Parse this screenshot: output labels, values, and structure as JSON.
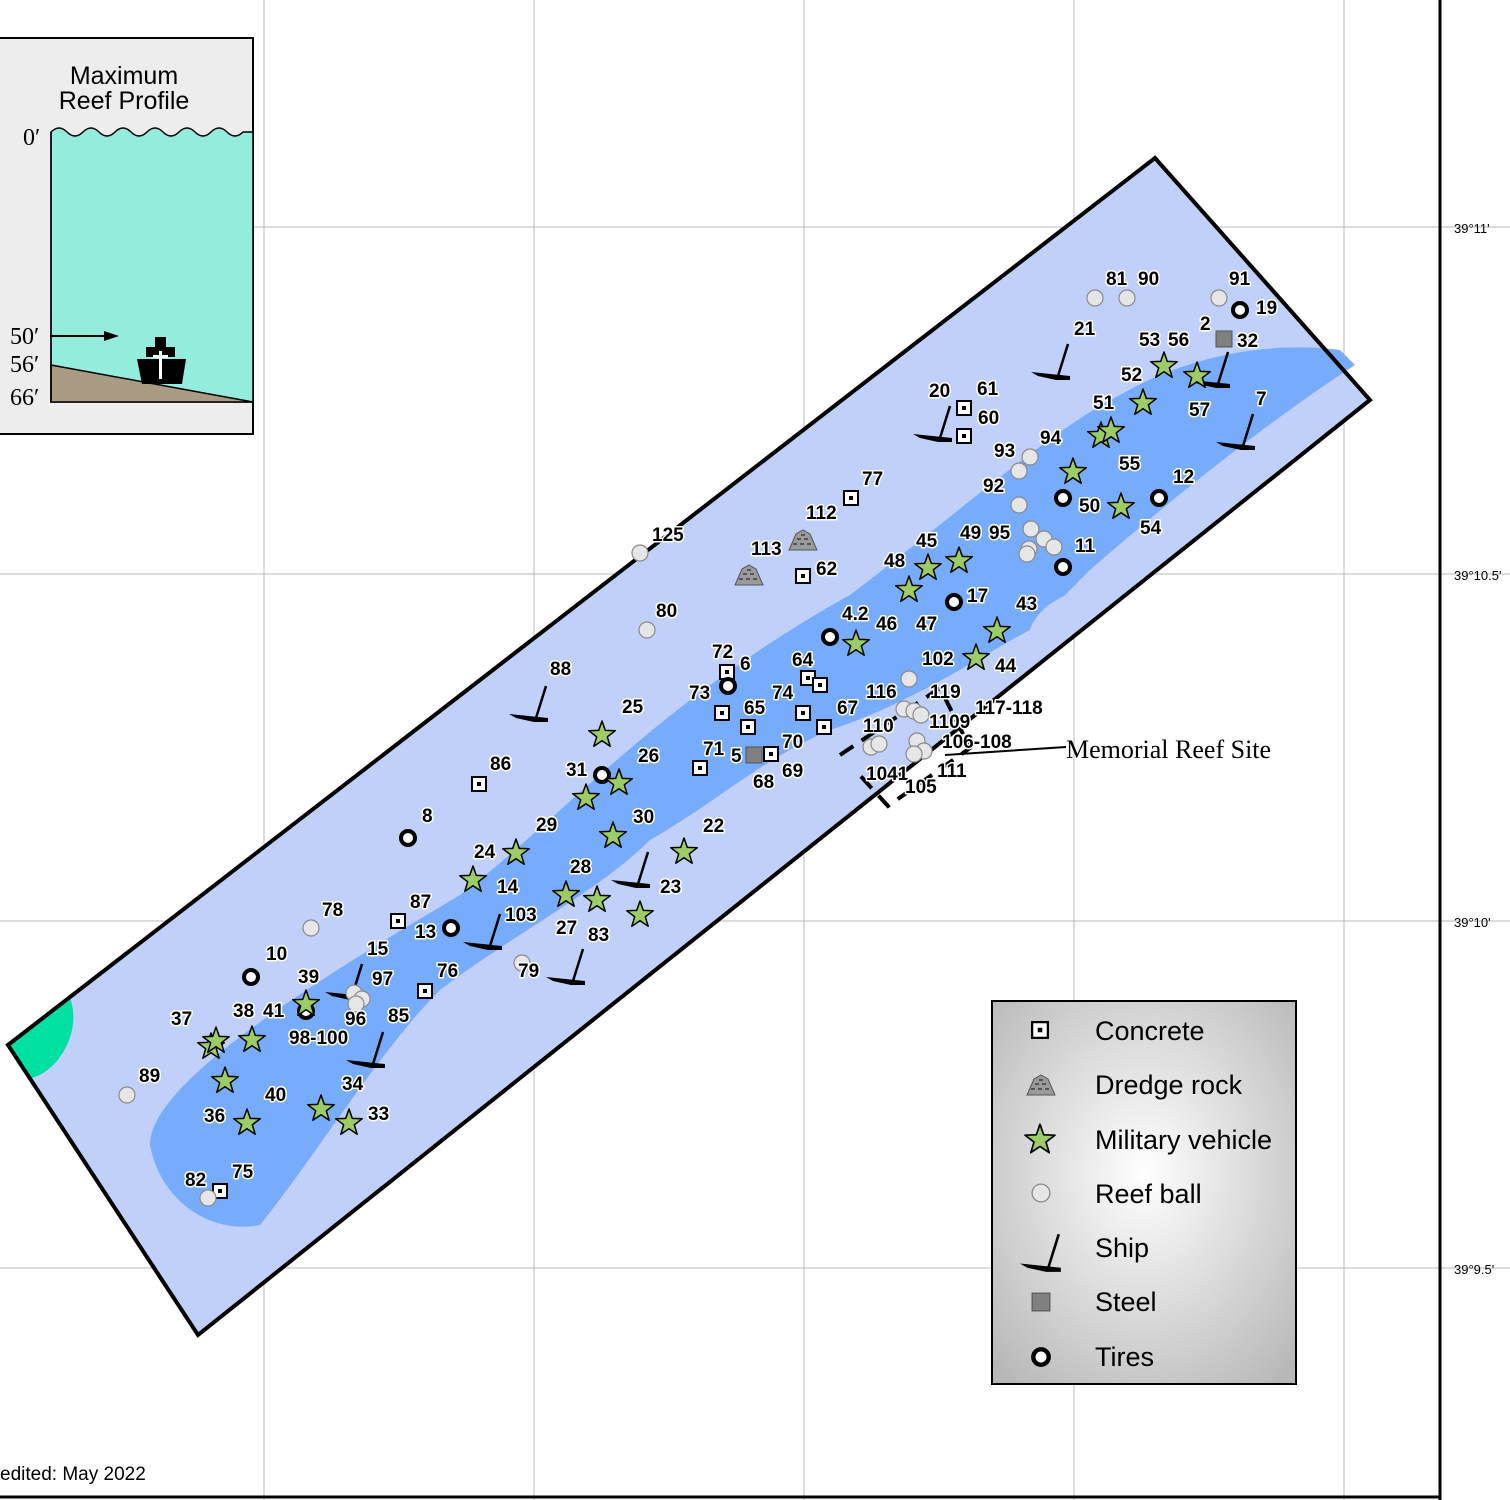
{
  "map": {
    "latitude_labels": [
      "39°11'",
      "39°10.5'",
      "39°10'",
      "39°9.5'"
    ],
    "memorial_label": "Memorial Reef Site",
    "edited_label": "edited: May 2022",
    "colors": {
      "outer_zone": "#c0d0fb",
      "deep_zone": "#76acfb",
      "corner_patch": "#00e0a0",
      "military_vehicle": "#9ccc65",
      "steel": "#808080"
    }
  },
  "inset": {
    "title_line1": "Maximum",
    "title_line2": "Reef Profile",
    "depths": [
      "0′",
      "50′",
      "56′",
      "66′"
    ],
    "colors": {
      "water": "#94ecdd",
      "seabed": "#a89a83"
    }
  },
  "legend": {
    "items": [
      {
        "label": "Concrete",
        "icon": "concrete-icon"
      },
      {
        "label": "Dredge rock",
        "icon": "dredge-rock-icon"
      },
      {
        "label": "Military vehicle",
        "icon": "military-vehicle-icon"
      },
      {
        "label": "Reef ball",
        "icon": "reef-ball-icon"
      },
      {
        "label": "Ship",
        "icon": "ship-icon"
      },
      {
        "label": "Steel",
        "icon": "steel-icon"
      },
      {
        "label": "Tires",
        "icon": "tires-icon"
      }
    ]
  },
  "site_labels": [
    "81",
    "90",
    "91",
    "19",
    "2",
    "32",
    "21",
    "53",
    "56",
    "52",
    "57",
    "7",
    "20",
    "61",
    "60",
    "51",
    "94",
    "93",
    "55",
    "12",
    "92",
    "50",
    "54",
    "77",
    "112",
    "49",
    "95",
    "45",
    "11",
    "125",
    "113",
    "62",
    "48",
    "17",
    "43",
    "80",
    "4.2",
    "46",
    "47",
    "102",
    "44",
    "72",
    "6",
    "64",
    "88",
    "73",
    "74",
    "116",
    "119",
    "117-118",
    "65",
    "67",
    "1109",
    "25",
    "71",
    "70",
    "110",
    "106-108",
    "26",
    "5",
    "69",
    "31",
    "68",
    "1041",
    "111",
    "105",
    "86",
    "8",
    "29",
    "30",
    "22",
    "24",
    "28",
    "14",
    "23",
    "103",
    "78",
    "87",
    "27",
    "83",
    "13",
    "10",
    "15",
    "97",
    "79",
    "39",
    "76",
    "38",
    "41",
    "96",
    "85",
    "37",
    "98-100",
    "89",
    "34",
    "40",
    "36",
    "33",
    "82",
    "75"
  ]
}
